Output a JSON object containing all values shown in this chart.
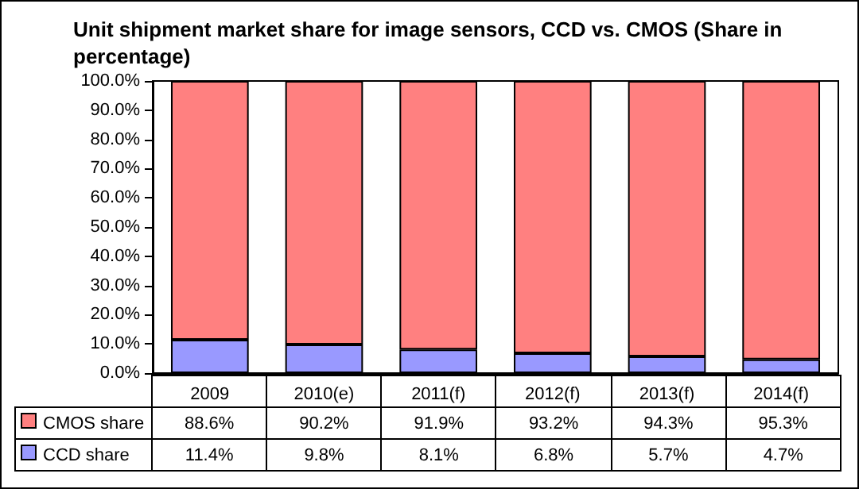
{
  "chart_data": {
    "type": "bar",
    "title": "Unit shipment market share for image sensors, CCD vs. CMOS (Share in percentage)",
    "categories": [
      "2009",
      "2010(e)",
      "2011(f)",
      "2012(f)",
      "2013(f)",
      "2014(f)"
    ],
    "stacked": true,
    "legend": "bottom",
    "grid": false,
    "ylim": [
      0,
      100
    ],
    "yticks": [
      {
        "value": 0,
        "label": "0.0%"
      },
      {
        "value": 10,
        "label": "10.0%"
      },
      {
        "value": 20,
        "label": "20.0%"
      },
      {
        "value": 30,
        "label": "30.0%"
      },
      {
        "value": 40,
        "label": "40.0%"
      },
      {
        "value": 50,
        "label": "50.0%"
      },
      {
        "value": 60,
        "label": "60.0%"
      },
      {
        "value": 70,
        "label": "70.0%"
      },
      {
        "value": 80,
        "label": "80.0%"
      },
      {
        "value": 90,
        "label": "90.0%"
      },
      {
        "value": 100,
        "label": "100.0%"
      }
    ],
    "series": [
      {
        "name": "CCD share",
        "color": "#9999ff",
        "values": [
          11.4,
          9.8,
          8.1,
          6.8,
          5.7,
          4.7
        ],
        "value_labels": [
          "11.4%",
          "9.8%",
          "8.1%",
          "6.8%",
          "5.7%",
          "4.7%"
        ]
      },
      {
        "name": "CMOS share",
        "color": "#ff8080",
        "values": [
          88.6,
          90.2,
          91.9,
          93.2,
          94.3,
          95.3
        ],
        "value_labels": [
          "88.6%",
          "90.2%",
          "91.9%",
          "93.2%",
          "94.3%",
          "95.3%"
        ]
      }
    ]
  }
}
